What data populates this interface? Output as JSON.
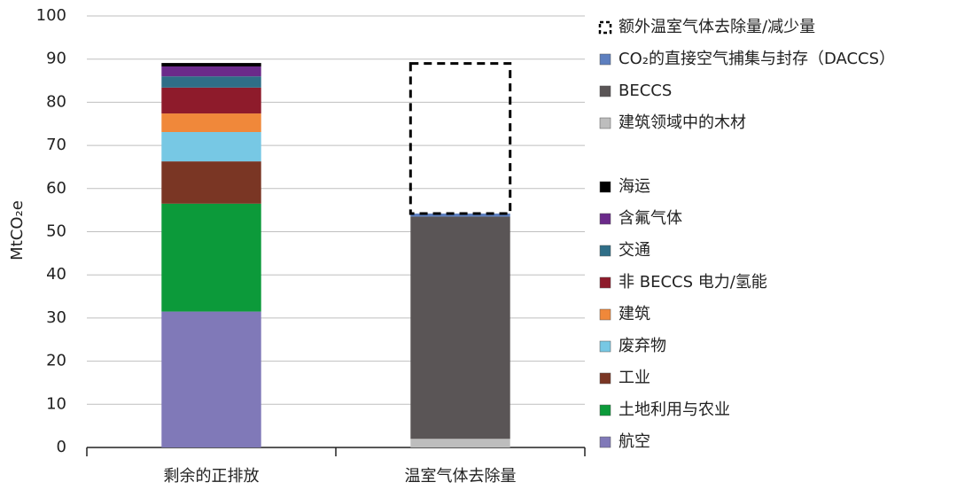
{
  "chart_data": {
    "type": "stacked_bar",
    "ylabel": "MtCO₂e",
    "categories": [
      "剩余的正排放",
      "温室气体去除量"
    ],
    "ylim": [
      0,
      100
    ],
    "yticks": [
      0,
      10,
      20,
      30,
      40,
      50,
      60,
      70,
      80,
      90,
      100
    ],
    "grid": true,
    "series": [
      {
        "name": "航空",
        "color": "#8079b8",
        "values": [
          31.5,
          null
        ]
      },
      {
        "name": "土地利用与农业",
        "color": "#0c9a3a",
        "values": [
          25,
          null
        ]
      },
      {
        "name": "工业",
        "color": "#7a3624",
        "values": [
          9.8,
          null
        ]
      },
      {
        "name": "废弃物",
        "color": "#77c8e4",
        "values": [
          6.8,
          null
        ]
      },
      {
        "name": "建筑",
        "color": "#f0883a",
        "values": [
          4.3,
          null
        ]
      },
      {
        "name": "非 BECCS 电力/氢能",
        "color": "#8e1b2b",
        "values": [
          6,
          null
        ]
      },
      {
        "name": "交通",
        "color": "#2f6e87",
        "values": [
          2.6,
          null
        ]
      },
      {
        "name": "含氟气体",
        "color": "#6b2a8a",
        "values": [
          2.3,
          null
        ]
      },
      {
        "name": "海运",
        "color": "#000000",
        "values": [
          0.8,
          null
        ]
      },
      {
        "name": "建筑领域中的木材",
        "color": "#bdbdbd",
        "values": [
          null,
          2
        ]
      },
      {
        "name": "BECCS",
        "color": "#5a5556",
        "values": [
          null,
          51.5
        ]
      },
      {
        "name": "CO₂的直接空气捕集与封存（DACCS）",
        "color": "#5d7fbf",
        "values": [
          null,
          0.7
        ]
      },
      {
        "name": "额外温室气体去除量/减少量",
        "color": "#000000",
        "dashed": true,
        "values": [
          null,
          34.8
        ]
      }
    ]
  }
}
